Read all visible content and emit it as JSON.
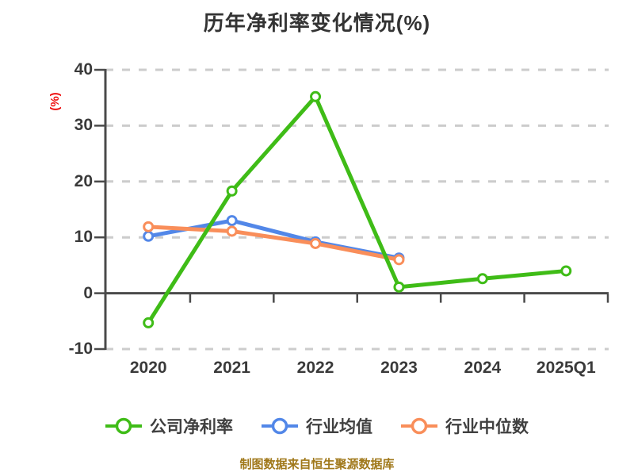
{
  "title": "历年净利率变化情况(%)",
  "source_note": "制图数据来自恒生聚源数据库",
  "chart_data": {
    "type": "line",
    "title": "历年净利率变化情况(%)",
    "categories": [
      "2020",
      "2021",
      "2022",
      "2023",
      "2024",
      "2025Q1"
    ],
    "series": [
      {
        "name": "公司净利率",
        "color": "#3fbc17",
        "values": [
          -5.3,
          18.3,
          35.2,
          1.1,
          2.6,
          4.0
        ]
      },
      {
        "name": "行业均值",
        "color": "#5287e8",
        "values": [
          10.2,
          13.0,
          9.2,
          6.3
        ]
      },
      {
        "name": "行业中位数",
        "color": "#f98e5a",
        "values": [
          11.9,
          11.1,
          8.9,
          6.0
        ]
      }
    ],
    "xlabel": "",
    "ylabel": "(%)",
    "ylim": [
      -10,
      40
    ],
    "yticks": [
      40,
      30,
      20,
      10,
      0,
      -10
    ],
    "grid": true,
    "gridline_style": "dashed",
    "marker": "open-circle",
    "legend_position": "bottom"
  },
  "colors": {
    "background": "#ffffff",
    "title": "#333333",
    "axis": "#4a4a4a",
    "tick_label": "#3a3a3a",
    "gridline": "#cccccc",
    "ylabel": "#ee1010",
    "legend_text": "#404040",
    "marker_fill": "#ffffff",
    "source_note": "#a0781a"
  }
}
